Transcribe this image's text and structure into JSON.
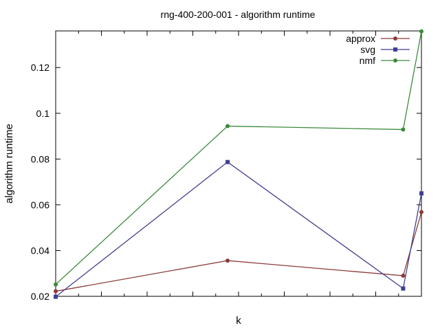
{
  "chart_data": {
    "type": "line",
    "title": "rng-400-200-001 - algorithm runtime",
    "xlabel": "k",
    "ylabel": "algorithm runtime",
    "xlim": [
      0,
      100
    ],
    "ylim": [
      0.02,
      0.136
    ],
    "yticks": [
      0.02,
      0.04,
      0.06,
      0.08,
      0.1,
      0.12
    ],
    "ytick_labels": [
      "0.02",
      "0.04",
      "0.06",
      "0.08",
      "0.1",
      "0.12"
    ],
    "grid": false,
    "legend_position": "top-right",
    "series": [
      {
        "name": "approx",
        "color": "#8b3a3a",
        "marker": "circle",
        "x": [
          0,
          47,
          95,
          100
        ],
        "y": [
          0.0222,
          0.0356,
          0.029,
          0.0568
        ]
      },
      {
        "name": "svg",
        "color": "#3f3f8f",
        "marker": "square",
        "x": [
          0,
          47,
          95,
          100
        ],
        "y": [
          0.0198,
          0.0787,
          0.0234,
          0.065
        ]
      },
      {
        "name": "nmf",
        "color": "#3a8a3a",
        "marker": "circle",
        "x": [
          0,
          47,
          95,
          100
        ],
        "y": [
          0.0252,
          0.0944,
          0.0929,
          0.1358
        ]
      }
    ]
  }
}
